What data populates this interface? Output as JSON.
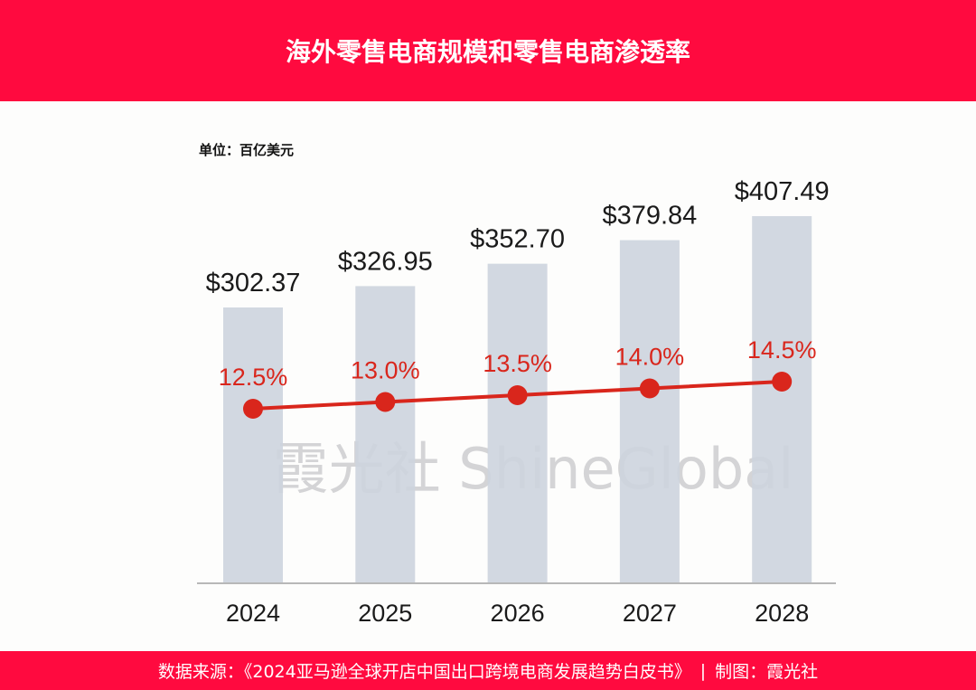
{
  "header": {
    "title": "海外零售电商规模和零售电商渗透率"
  },
  "unit_label": "单位：百亿美元",
  "watermark": "霞光社 ShineGlobal",
  "footer": {
    "source": "数据来源：《2024亚马逊全球开店中国出口跨境电商发展趋势白皮书》",
    "separator": "|",
    "credit": "制图：霞光社"
  },
  "colors": {
    "brand": "#ff0a3f",
    "bar": "#cdd4de",
    "line": "#d9261c"
  },
  "chart_data": {
    "type": "bar+line",
    "categories": [
      "2024",
      "2025",
      "2026",
      "2027",
      "2028"
    ],
    "series": [
      {
        "type": "bar",
        "values": [
          302.37,
          326.95,
          352.7,
          379.84,
          407.49
        ],
        "labels": [
          "$302.37",
          "$326.95",
          "$352.70",
          "$379.84",
          "$407.49"
        ]
      },
      {
        "type": "line",
        "values": [
          12.5,
          13.0,
          13.5,
          14.0,
          14.5
        ],
        "labels": [
          "12.5%",
          "13.0%",
          "13.5%",
          "14.0%",
          "14.5%"
        ]
      }
    ],
    "unit": "百亿美元",
    "grid": false,
    "legend": "none"
  }
}
